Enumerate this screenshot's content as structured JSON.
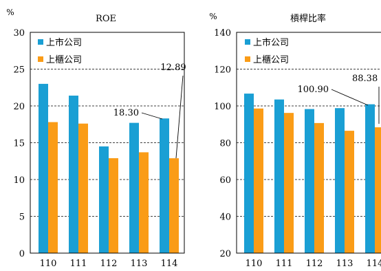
{
  "chart_data": [
    {
      "type": "bar",
      "title": "ROE",
      "unit_label": "%",
      "categories": [
        "110",
        "111",
        "112",
        "113",
        "114"
      ],
      "ylim": [
        0,
        30
      ],
      "yticks": [
        0,
        5,
        10,
        15,
        20,
        25,
        30
      ],
      "grid": "dashed horizontal",
      "legend_position": "top-left",
      "series": [
        {
          "name": "上市公司",
          "color": "#1a9fd4",
          "values": [
            23.0,
            21.4,
            14.5,
            17.7,
            18.3
          ]
        },
        {
          "name": "上櫃公司",
          "color": "#fa9c17",
          "values": [
            17.8,
            17.6,
            12.9,
            13.7,
            12.89
          ]
        }
      ],
      "annotations": [
        {
          "text": "18.30",
          "series": 0,
          "index": 4
        },
        {
          "text": "12.89",
          "series": 1,
          "index": 4
        }
      ]
    },
    {
      "type": "bar",
      "title": "槓桿比率",
      "unit_label": "%",
      "categories": [
        "110",
        "111",
        "112",
        "113",
        "114"
      ],
      "ylim": [
        20,
        140
      ],
      "yticks": [
        20,
        40,
        60,
        80,
        100,
        120,
        140
      ],
      "grid": "dashed horizontal",
      "legend_position": "top-left",
      "series": [
        {
          "name": "上市公司",
          "color": "#1a9fd4",
          "values": [
            106.7,
            103.5,
            98.3,
            98.8,
            100.9
          ]
        },
        {
          "name": "上櫃公司",
          "color": "#fa9c17",
          "values": [
            98.6,
            96.2,
            90.7,
            86.5,
            88.38
          ]
        }
      ],
      "annotations": [
        {
          "text": "100.90",
          "series": 0,
          "index": 4
        },
        {
          "text": "88.38",
          "series": 1,
          "index": 4
        }
      ]
    }
  ]
}
